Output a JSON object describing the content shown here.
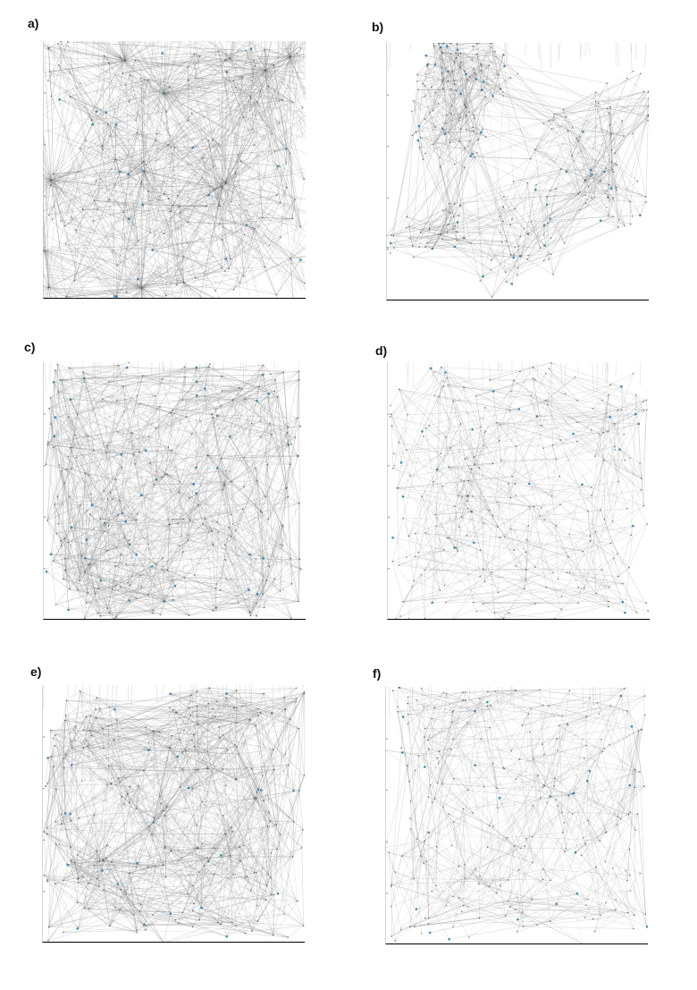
{
  "figure": {
    "panels": [
      {
        "id": "a",
        "label": "a)",
        "style": "hubs",
        "seed": 11,
        "edge_color": "#777777",
        "node_color": "#3a7ca8"
      },
      {
        "id": "b",
        "label": "b)",
        "style": "clusters",
        "seed": 23,
        "edge_color": "#888888",
        "node_color": "#3a7ca8"
      },
      {
        "id": "c",
        "label": "c)",
        "style": "dense-random",
        "seed": 37,
        "edge_color": "#888888",
        "node_color": "#3a7ca8"
      },
      {
        "id": "d",
        "label": "d)",
        "style": "sparse-random",
        "seed": 41,
        "edge_color": "#999999",
        "node_color": "#3a7ca8"
      },
      {
        "id": "e",
        "label": "e)",
        "style": "dense-random",
        "seed": 53,
        "edge_color": "#888888",
        "node_color": "#3a7ca8"
      },
      {
        "id": "f",
        "label": "f)",
        "style": "sparse-random",
        "seed": 67,
        "edge_color": "#999999",
        "node_color": "#3a7ca8"
      }
    ]
  }
}
